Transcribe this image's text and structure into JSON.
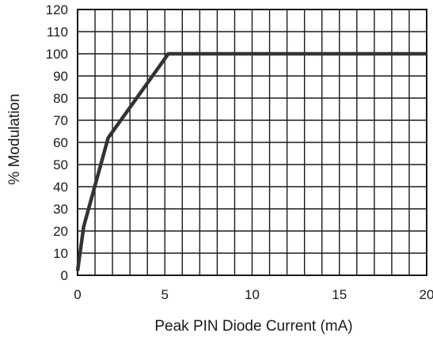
{
  "chart_data": {
    "type": "line",
    "title": "",
    "xlabel": "Peak PIN Diode Current (mA)",
    "ylabel": "% Modulation",
    "xlim": [
      0,
      20
    ],
    "ylim": [
      0,
      120
    ],
    "x_ticks": [
      0,
      5,
      10,
      15,
      20
    ],
    "x_tick_labels": [
      "0",
      "5",
      "10",
      "15",
      "20"
    ],
    "y_ticks": [
      0,
      10,
      20,
      30,
      40,
      50,
      60,
      70,
      80,
      90,
      100,
      110,
      120
    ],
    "y_tick_labels": [
      "0",
      "10",
      "20",
      "30",
      "40",
      "50",
      "60",
      "70",
      "80",
      "90",
      "100",
      "110",
      "120"
    ],
    "grid": true,
    "grid_minor_x_step": 1,
    "grid_y_step": 10,
    "series": [
      {
        "color": "#333333",
        "x": [
          0,
          0.35,
          1.75,
          5.2,
          20
        ],
        "y": [
          2,
          22,
          62,
          100,
          100
        ]
      }
    ]
  }
}
